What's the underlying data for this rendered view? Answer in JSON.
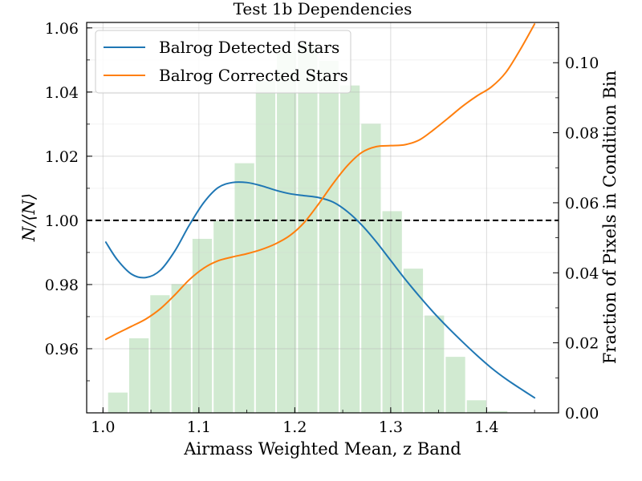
{
  "chart_data": {
    "type": "line",
    "title": "Test 1b Dependencies",
    "xlabel": "Airmass Weighted Mean, z Band",
    "ylabel": "N/⟨N⟩",
    "y2label": "Fraction of Pixels in Condition Bin",
    "xlim": [
      0.983,
      1.475
    ],
    "ylim": [
      0.94,
      1.0617
    ],
    "y2lim": [
      0.0,
      0.1115
    ],
    "grid": true,
    "legend_position": "top-left",
    "x_ticks": [
      {
        "value": 1.0,
        "label": "1.0"
      },
      {
        "value": 1.1,
        "label": "1.1"
      },
      {
        "value": 1.2,
        "label": "1.2"
      },
      {
        "value": 1.3,
        "label": "1.3"
      },
      {
        "value": 1.4,
        "label": "1.4"
      }
    ],
    "y_ticks": [
      {
        "value": 0.96,
        "label": "0.96"
      },
      {
        "value": 0.98,
        "label": "0.98"
      },
      {
        "value": 1.0,
        "label": "1.00"
      },
      {
        "value": 1.02,
        "label": "1.02"
      },
      {
        "value": 1.04,
        "label": "1.04"
      },
      {
        "value": 1.06,
        "label": "1.06"
      }
    ],
    "y2_ticks": [
      {
        "value": 0.0,
        "label": "0.00"
      },
      {
        "value": 0.02,
        "label": "0.02"
      },
      {
        "value": 0.04,
        "label": "0.04"
      },
      {
        "value": 0.06,
        "label": "0.06"
      },
      {
        "value": 0.08,
        "label": "0.08"
      },
      {
        "value": 0.1,
        "label": "0.10"
      }
    ],
    "reference_line": {
      "y": 1.0,
      "style": "dashed",
      "color": "#000000"
    },
    "series": [
      {
        "name": "Balrog Detected Stars",
        "color": "#1f77b4",
        "x": [
          1.003,
          1.015,
          1.03,
          1.045,
          1.06,
          1.075,
          1.09,
          1.105,
          1.12,
          1.135,
          1.15,
          1.165,
          1.18,
          1.195,
          1.21,
          1.225,
          1.24,
          1.255,
          1.27,
          1.285,
          1.3,
          1.315,
          1.33,
          1.345,
          1.36,
          1.375,
          1.39,
          1.405,
          1.42,
          1.435,
          1.45
        ],
        "y": [
          0.9932,
          0.9877,
          0.9832,
          0.9822,
          0.9845,
          0.9905,
          0.9985,
          1.0055,
          1.0102,
          1.0118,
          1.0118,
          1.0108,
          1.0094,
          1.0083,
          1.0077,
          1.0071,
          1.0057,
          1.0027,
          0.9985,
          0.9933,
          0.9875,
          0.9817,
          0.9763,
          0.9712,
          0.9665,
          0.9621,
          0.9579,
          0.954,
          0.9506,
          0.9476,
          0.9447
        ]
      },
      {
        "name": "Balrog Corrected Stars",
        "color": "#ff7f0e",
        "x": [
          1.003,
          1.015,
          1.03,
          1.045,
          1.06,
          1.075,
          1.09,
          1.105,
          1.12,
          1.135,
          1.15,
          1.165,
          1.18,
          1.195,
          1.21,
          1.225,
          1.24,
          1.255,
          1.27,
          1.285,
          1.3,
          1.315,
          1.33,
          1.345,
          1.36,
          1.375,
          1.39,
          1.405,
          1.42,
          1.435,
          1.45
        ],
        "y": [
          0.9629,
          0.9648,
          0.967,
          0.9693,
          0.9725,
          0.9768,
          0.9815,
          0.9851,
          0.9874,
          0.9886,
          0.9896,
          0.9909,
          0.9927,
          0.9953,
          0.9994,
          1.0052,
          1.0115,
          1.0171,
          1.0212,
          1.023,
          1.0233,
          1.0236,
          1.0251,
          1.0283,
          1.0319,
          1.0356,
          1.0388,
          1.0416,
          1.0461,
          1.0532,
          1.0612
        ]
      }
    ],
    "histogram": {
      "name": "Fraction of Pixels in Condition Bin",
      "color": "#2ca02c",
      "opacity": 0.22,
      "bin_width": 0.022,
      "bin_centers": [
        1.0155,
        1.0375,
        1.0595,
        1.0815,
        1.1035,
        1.1255,
        1.1475,
        1.1695,
        1.1915,
        1.2135,
        1.2355,
        1.2575,
        1.2795,
        1.3015,
        1.3235,
        1.3455,
        1.3675,
        1.3895,
        1.4115,
        1.4335
      ],
      "values": [
        0.0058,
        0.0213,
        0.0336,
        0.0368,
        0.0497,
        0.0548,
        0.0713,
        0.0948,
        0.1033,
        0.1053,
        0.1005,
        0.0935,
        0.0826,
        0.0576,
        0.0412,
        0.0278,
        0.016,
        0.0036,
        0.0005,
        0.0001
      ]
    }
  }
}
